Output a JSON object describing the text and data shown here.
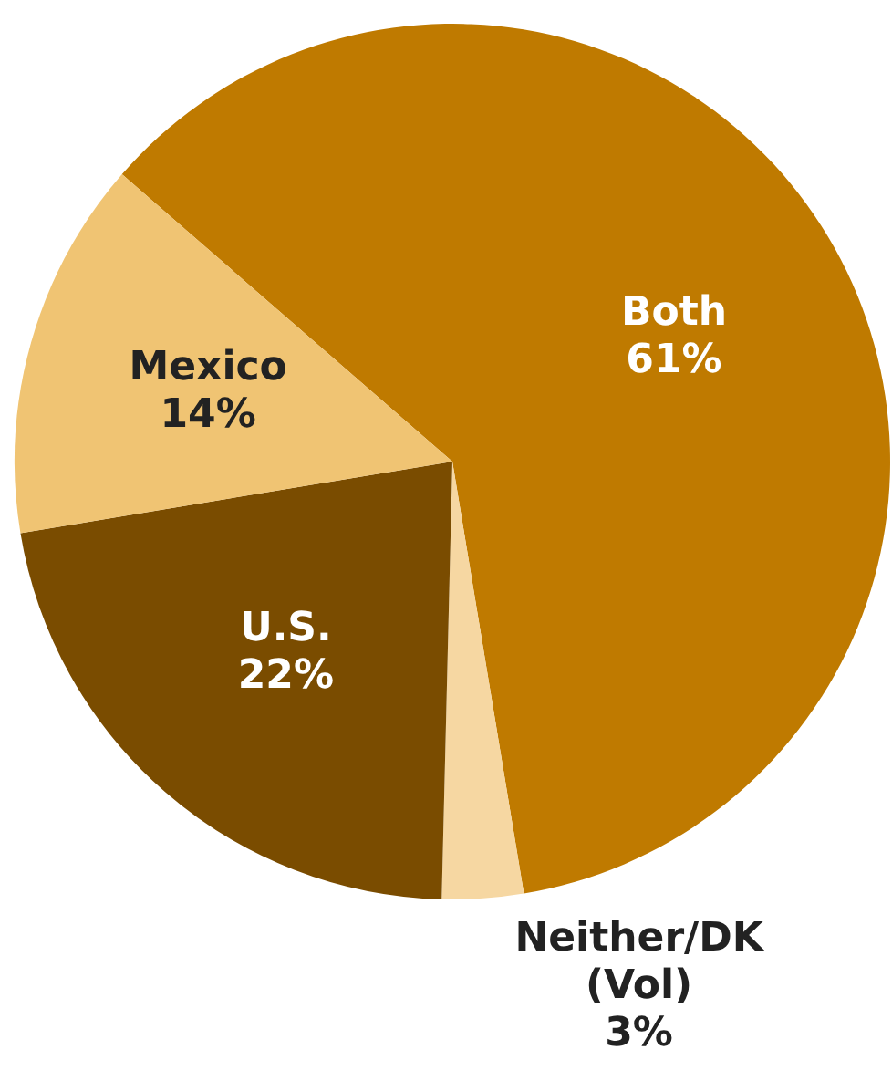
{
  "chart_data": {
    "type": "pie",
    "categories": [
      "Both",
      "Neither/DK (Vol)",
      "U.S.",
      "Mexico"
    ],
    "values": [
      61,
      3,
      22,
      14
    ],
    "colors": [
      "#bf7a00",
      "#f6d7a2",
      "#7a4c00",
      "#f0c473"
    ],
    "value_labels": [
      "61%",
      "3%",
      "22%",
      "14%"
    ],
    "legend": false
  }
}
